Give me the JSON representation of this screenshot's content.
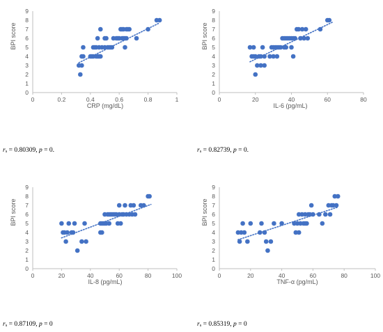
{
  "chart_data": [
    {
      "type": "scatter",
      "xlabel": "CRP (mg/dL)",
      "ylabel": "BPI score",
      "xlim": [
        0,
        1
      ],
      "ylim": [
        0,
        9
      ],
      "xticks": [
        "0",
        "0.2",
        "0.4",
        "0.6",
        "0.8",
        "1"
      ],
      "yticks": [
        "0",
        "1",
        "2",
        "3",
        "4",
        "5",
        "6",
        "7",
        "8",
        "9"
      ],
      "trendline": {
        "x": [
          0.32,
          0.88
        ],
        "y": [
          3.3,
          7.7
        ],
        "style": "dotted linear"
      },
      "points": [
        [
          0.32,
          3
        ],
        [
          0.33,
          2
        ],
        [
          0.34,
          3
        ],
        [
          0.34,
          4
        ],
        [
          0.35,
          4
        ],
        [
          0.35,
          5
        ],
        [
          0.4,
          4
        ],
        [
          0.41,
          4
        ],
        [
          0.42,
          4
        ],
        [
          0.42,
          5
        ],
        [
          0.43,
          5
        ],
        [
          0.44,
          4
        ],
        [
          0.44,
          5
        ],
        [
          0.45,
          4
        ],
        [
          0.45,
          6
        ],
        [
          0.46,
          4
        ],
        [
          0.46,
          5
        ],
        [
          0.47,
          4
        ],
        [
          0.47,
          7
        ],
        [
          0.48,
          5
        ],
        [
          0.5,
          5
        ],
        [
          0.5,
          6
        ],
        [
          0.51,
          6
        ],
        [
          0.52,
          5
        ],
        [
          0.53,
          5
        ],
        [
          0.54,
          5
        ],
        [
          0.55,
          5
        ],
        [
          0.56,
          6
        ],
        [
          0.58,
          6
        ],
        [
          0.59,
          6
        ],
        [
          0.6,
          6
        ],
        [
          0.61,
          7
        ],
        [
          0.62,
          6
        ],
        [
          0.62,
          7
        ],
        [
          0.63,
          6
        ],
        [
          0.63,
          7
        ],
        [
          0.64,
          5
        ],
        [
          0.64,
          6
        ],
        [
          0.65,
          6
        ],
        [
          0.65,
          7
        ],
        [
          0.66,
          7
        ],
        [
          0.67,
          7
        ],
        [
          0.72,
          6
        ],
        [
          0.8,
          7
        ],
        [
          0.86,
          8
        ],
        [
          0.88,
          8
        ]
      ],
      "stat": {
        "r": "r",
        "sub": "s",
        "rvalue": " = 0.80309, ",
        "p": "p",
        "pvalue": " = 0."
      }
    },
    {
      "type": "scatter",
      "xlabel": "IL-6 (pg/mL)",
      "ylabel": "BPI score",
      "xlim": [
        0,
        80
      ],
      "ylim": [
        0,
        9
      ],
      "xticks": [
        "0",
        "20",
        "40",
        "60",
        "80"
      ],
      "yticks": [
        "0",
        "1",
        "2",
        "3",
        "4",
        "5",
        "6",
        "7",
        "8",
        "9"
      ],
      "trendline": {
        "x": [
          17,
          63
        ],
        "y": [
          3.4,
          7.8
        ],
        "style": "dotted linear"
      },
      "points": [
        [
          17,
          5
        ],
        [
          18,
          4
        ],
        [
          19,
          4
        ],
        [
          19,
          5
        ],
        [
          20,
          2
        ],
        [
          20,
          4
        ],
        [
          21,
          3
        ],
        [
          22,
          4
        ],
        [
          23,
          3
        ],
        [
          23,
          4
        ],
        [
          24,
          5
        ],
        [
          25,
          3
        ],
        [
          25,
          4
        ],
        [
          28,
          4
        ],
        [
          29,
          5
        ],
        [
          30,
          4
        ],
        [
          30,
          5
        ],
        [
          31,
          5
        ],
        [
          32,
          4
        ],
        [
          32,
          5
        ],
        [
          33,
          5
        ],
        [
          34,
          5
        ],
        [
          35,
          6
        ],
        [
          36,
          5
        ],
        [
          36,
          6
        ],
        [
          37,
          6
        ],
        [
          37,
          5
        ],
        [
          38,
          6
        ],
        [
          39,
          6
        ],
        [
          40,
          6
        ],
        [
          40,
          5
        ],
        [
          41,
          4
        ],
        [
          41,
          6
        ],
        [
          42,
          6
        ],
        [
          43,
          7
        ],
        [
          44,
          7
        ],
        [
          45,
          6
        ],
        [
          46,
          7
        ],
        [
          47,
          6
        ],
        [
          48,
          7
        ],
        [
          49,
          6
        ],
        [
          56,
          7
        ],
        [
          60,
          8
        ],
        [
          61,
          8
        ]
      ],
      "stat": {
        "r": "r",
        "sub": "s",
        "rvalue": " = 0.82739, ",
        "p": "p",
        "pvalue": " = 0."
      }
    },
    {
      "type": "scatter",
      "xlabel": "IL-8 (pg/mL)",
      "ylabel": "BPI score",
      "xlim": [
        0,
        100
      ],
      "ylim": [
        0,
        9
      ],
      "xticks": [
        "0",
        "20",
        "40",
        "60",
        "80",
        "100"
      ],
      "yticks": [
        "0",
        "1",
        "2",
        "3",
        "4",
        "5",
        "6",
        "7",
        "8",
        "9"
      ],
      "trendline": {
        "x": [
          20,
          82
        ],
        "y": [
          3.4,
          7.1
        ],
        "style": "dotted linear"
      },
      "points": [
        [
          20,
          5
        ],
        [
          21,
          4
        ],
        [
          22,
          4
        ],
        [
          23,
          3
        ],
        [
          24,
          4
        ],
        [
          25,
          5
        ],
        [
          27,
          4
        ],
        [
          28,
          4
        ],
        [
          29,
          5
        ],
        [
          31,
          2
        ],
        [
          34,
          3
        ],
        [
          36,
          5
        ],
        [
          37,
          3
        ],
        [
          47,
          4
        ],
        [
          47,
          5
        ],
        [
          48,
          4
        ],
        [
          48,
          5
        ],
        [
          49,
          5
        ],
        [
          50,
          5
        ],
        [
          50,
          6
        ],
        [
          51,
          5
        ],
        [
          52,
          6
        ],
        [
          53,
          5
        ],
        [
          53,
          6
        ],
        [
          54,
          6
        ],
        [
          55,
          6
        ],
        [
          56,
          6
        ],
        [
          57,
          6
        ],
        [
          58,
          6
        ],
        [
          59,
          5
        ],
        [
          60,
          6
        ],
        [
          60,
          7
        ],
        [
          61,
          5
        ],
        [
          62,
          6
        ],
        [
          63,
          6
        ],
        [
          64,
          7
        ],
        [
          65,
          6
        ],
        [
          67,
          6
        ],
        [
          68,
          7
        ],
        [
          69,
          6
        ],
        [
          70,
          7
        ],
        [
          71,
          6
        ],
        [
          75,
          7
        ],
        [
          77,
          7
        ],
        [
          80,
          8
        ],
        [
          81,
          8
        ]
      ],
      "stat": {
        "r": "r",
        "sub": "s",
        "rvalue": " = 0.87109, ",
        "p": "p",
        "pvalue": " = 0"
      }
    },
    {
      "type": "scatter",
      "xlabel": "TNF-α (pg/mL)",
      "ylabel": "BPI score",
      "xlim": [
        0,
        100
      ],
      "ylim": [
        0,
        9
      ],
      "xticks": [
        "0",
        "20",
        "40",
        "60",
        "80",
        "100"
      ],
      "yticks": [
        "0",
        "1",
        "2",
        "3",
        "4",
        "5",
        "6",
        "7",
        "8",
        "9"
      ],
      "trendline": {
        "x": [
          12,
          76
        ],
        "y": [
          3.2,
          6.8
        ],
        "style": "dotted linear"
      },
      "points": [
        [
          12,
          4
        ],
        [
          13,
          3
        ],
        [
          14,
          4
        ],
        [
          15,
          5
        ],
        [
          16,
          4
        ],
        [
          18,
          3
        ],
        [
          20,
          5
        ],
        [
          26,
          4
        ],
        [
          27,
          5
        ],
        [
          29,
          4
        ],
        [
          30,
          3
        ],
        [
          31,
          2
        ],
        [
          33,
          3
        ],
        [
          35,
          5
        ],
        [
          40,
          5
        ],
        [
          48,
          5
        ],
        [
          49,
          4
        ],
        [
          50,
          5
        ],
        [
          51,
          6
        ],
        [
          51,
          4
        ],
        [
          52,
          5
        ],
        [
          53,
          6
        ],
        [
          54,
          5
        ],
        [
          55,
          6
        ],
        [
          55,
          5
        ],
        [
          56,
          5
        ],
        [
          57,
          6
        ],
        [
          58,
          6
        ],
        [
          59,
          7
        ],
        [
          60,
          6
        ],
        [
          64,
          6
        ],
        [
          66,
          5
        ],
        [
          68,
          6
        ],
        [
          70,
          7
        ],
        [
          71,
          6
        ],
        [
          72,
          7
        ],
        [
          73,
          7
        ],
        [
          74,
          8
        ],
        [
          75,
          7
        ],
        [
          76,
          8
        ]
      ],
      "stat": {
        "r": "r",
        "sub": "s",
        "rvalue": " = 0.85319, ",
        "p": "p",
        "pvalue": " = 0"
      }
    }
  ],
  "colors": {
    "marker": "#4472C4",
    "trendline": "#4472C4",
    "axis": "#BFBFBF",
    "text": "#595959"
  }
}
